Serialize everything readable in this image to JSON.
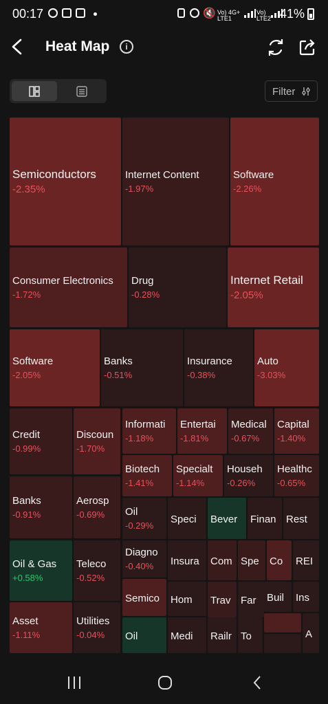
{
  "status_bar": {
    "time": "00:17",
    "net1": "Vo) 4G+\nLTE1",
    "net2": "Vo)\nLTE2",
    "battery": "41%"
  },
  "header": {
    "title": "Heat Map"
  },
  "toolbar": {
    "filter_label": "Filter"
  },
  "colors": {
    "neg_strong": "#6b2424",
    "neg_mid": "#4f1e1e",
    "neg_light": "#3a1b1b",
    "neg_faint": "#2c1a1a",
    "pos": "#17362a",
    "neg_text": "#e8505b",
    "pos_text": "#33c46a"
  },
  "tiles": [
    {
      "name": "Semiconductors",
      "value": "-2.35%",
      "shade": "neg_strong",
      "big": true
    },
    {
      "name": "Internet Content",
      "value": "-1.97%",
      "shade": "neg_light"
    },
    {
      "name": "Software",
      "value": "-2.26%",
      "shade": "neg_strong"
    },
    {
      "name": "Consumer Electronics",
      "value": "-1.72%",
      "shade": "neg_mid"
    },
    {
      "name": "Drug",
      "value": "-0.28%",
      "shade": "neg_faint"
    },
    {
      "name": "Internet Retail",
      "value": "-2.05%",
      "shade": "neg_strong",
      "big": true
    },
    {
      "name": "Software",
      "value": "-2.05%",
      "shade": "neg_strong"
    },
    {
      "name": "Banks",
      "value": "-0.51%",
      "shade": "neg_faint"
    },
    {
      "name": "Insurance",
      "value": "-0.38%",
      "shade": "neg_faint"
    },
    {
      "name": "Auto",
      "value": "-3.03%",
      "shade": "neg_strong"
    },
    {
      "name": "Credit",
      "value": "-0.99%",
      "shade": "neg_light"
    },
    {
      "name": "Discoun",
      "value": "-1.70%",
      "shade": "neg_mid"
    },
    {
      "name": "Informati",
      "value": "-1.18%",
      "shade": "neg_mid"
    },
    {
      "name": "Entertai",
      "value": "-1.81%",
      "shade": "neg_mid"
    },
    {
      "name": "Medical",
      "value": "-0.67%",
      "shade": "neg_light"
    },
    {
      "name": "Capital",
      "value": "-1.40%",
      "shade": "neg_mid"
    },
    {
      "name": "Biotech",
      "value": "-1.41%",
      "shade": "neg_mid"
    },
    {
      "name": "Specialt",
      "value": "-1.14%",
      "shade": "neg_mid"
    },
    {
      "name": "Househ",
      "value": "-0.26%",
      "shade": "neg_faint"
    },
    {
      "name": "Healthc",
      "value": "-0.65%",
      "shade": "neg_light"
    },
    {
      "name": "Banks",
      "value": "-0.91%",
      "shade": "neg_light"
    },
    {
      "name": "Aerosp",
      "value": "-0.69%",
      "shade": "neg_light"
    },
    {
      "name": "Oil",
      "value": "-0.29%",
      "shade": "neg_faint"
    },
    {
      "name": "Speci",
      "value": "",
      "shade": "neg_faint"
    },
    {
      "name": "Bever",
      "value": "",
      "shade": "pos"
    },
    {
      "name": "Finan",
      "value": "",
      "shade": "neg_faint"
    },
    {
      "name": "Rest",
      "value": "",
      "shade": "neg_faint"
    },
    {
      "name": "Oil & Gas",
      "value": "+0.58%",
      "shade": "pos"
    },
    {
      "name": "Teleco",
      "value": "-0.52%",
      "shade": "neg_faint"
    },
    {
      "name": "Diagno",
      "value": "-0.40%",
      "shade": "neg_faint"
    },
    {
      "name": "Insura",
      "value": "",
      "shade": "neg_faint"
    },
    {
      "name": "Com",
      "value": "",
      "shade": "neg_light"
    },
    {
      "name": "Spe",
      "value": "",
      "shade": "neg_light"
    },
    {
      "name": "Co",
      "value": "",
      "shade": "neg_mid"
    },
    {
      "name": "REI",
      "value": "",
      "shade": "neg_faint"
    },
    {
      "name": "Semico",
      "value": "",
      "shade": "neg_mid"
    },
    {
      "name": "Hom",
      "value": "",
      "shade": "neg_faint"
    },
    {
      "name": "Trav",
      "value": "",
      "shade": "neg_light"
    },
    {
      "name": "Far",
      "value": "",
      "shade": "neg_faint"
    },
    {
      "name": "Buil",
      "value": "",
      "shade": "neg_faint"
    },
    {
      "name": "Ins",
      "value": "",
      "shade": "neg_faint"
    },
    {
      "name": "Asset",
      "value": "-1.11%",
      "shade": "neg_mid"
    },
    {
      "name": "Utilities",
      "value": "-0.04%",
      "shade": "neg_faint"
    },
    {
      "name": "Oil",
      "value": "",
      "shade": "pos"
    },
    {
      "name": "Medi",
      "value": "",
      "shade": "neg_faint"
    },
    {
      "name": "Railr",
      "value": "",
      "shade": "neg_faint"
    },
    {
      "name": "To",
      "value": "",
      "shade": "neg_faint"
    },
    {
      "name": "",
      "value": "",
      "shade": "neg_mid"
    },
    {
      "name": "",
      "value": "",
      "shade": "neg_faint"
    },
    {
      "name": "A",
      "value": "",
      "shade": "neg_faint"
    }
  ]
}
